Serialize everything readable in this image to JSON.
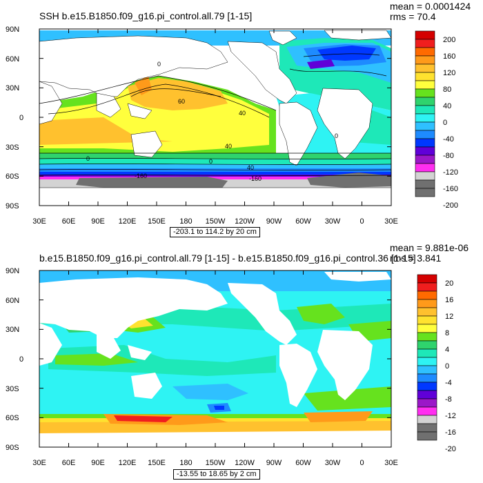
{
  "colors": {
    "scale_top": [
      "#d40000",
      "#f01e1e",
      "#ff6a00",
      "#ff9a1a",
      "#ffc12e",
      "#ffe22f",
      "#ffff3d",
      "#66e21e",
      "#2fd36d",
      "#1ee8b8",
      "#2ef3f3",
      "#2fc0ff",
      "#1e8bff",
      "#0038ff",
      "#6000d8",
      "#9b17c8",
      "#ff2ef0",
      "#d3d3d3",
      "#707070"
    ],
    "land": "#ffffff",
    "coast": "#000000"
  },
  "top": {
    "title": "SSH b.e15.B1850.f09_g16.pi_control.all.79 [1-15]",
    "mean": "mean = 0.0001424",
    "rms": "rms = 70.4",
    "range_label": "-203.1 to 114.2 by 20 cm",
    "colorbar_labels": [
      "200",
      "160",
      "120",
      "80",
      "40",
      "0",
      "-40",
      "-80",
      "-120",
      "-160",
      "-200"
    ],
    "contour_labels": [
      "0",
      "60",
      "40",
      "40",
      "0",
      "0",
      "40",
      "-160",
      "-160",
      "0"
    ]
  },
  "bottom": {
    "title": "b.e15.B1850.f09_g16.pi_control.all.79 [1-15] - b.e15.B1850.f09_g16.pi_control.36 [1-15]",
    "mean": "mean = 9.881e-06",
    "rms": "rms = 3.841",
    "range_label": "-13.55 to 18.65 by 2 cm",
    "colorbar_labels": [
      "20",
      "16",
      "12",
      "8",
      "4",
      "0",
      "-4",
      "-8",
      "-12",
      "-16",
      "-20"
    ]
  },
  "axes": {
    "lat_labels": [
      "90N",
      "60N",
      "30N",
      "0",
      "30S",
      "60S",
      "90S"
    ],
    "lon_labels": [
      "30E",
      "60E",
      "90E",
      "120E",
      "150E",
      "180",
      "150W",
      "120W",
      "90W",
      "60W",
      "30W",
      "0",
      "30E"
    ]
  }
}
